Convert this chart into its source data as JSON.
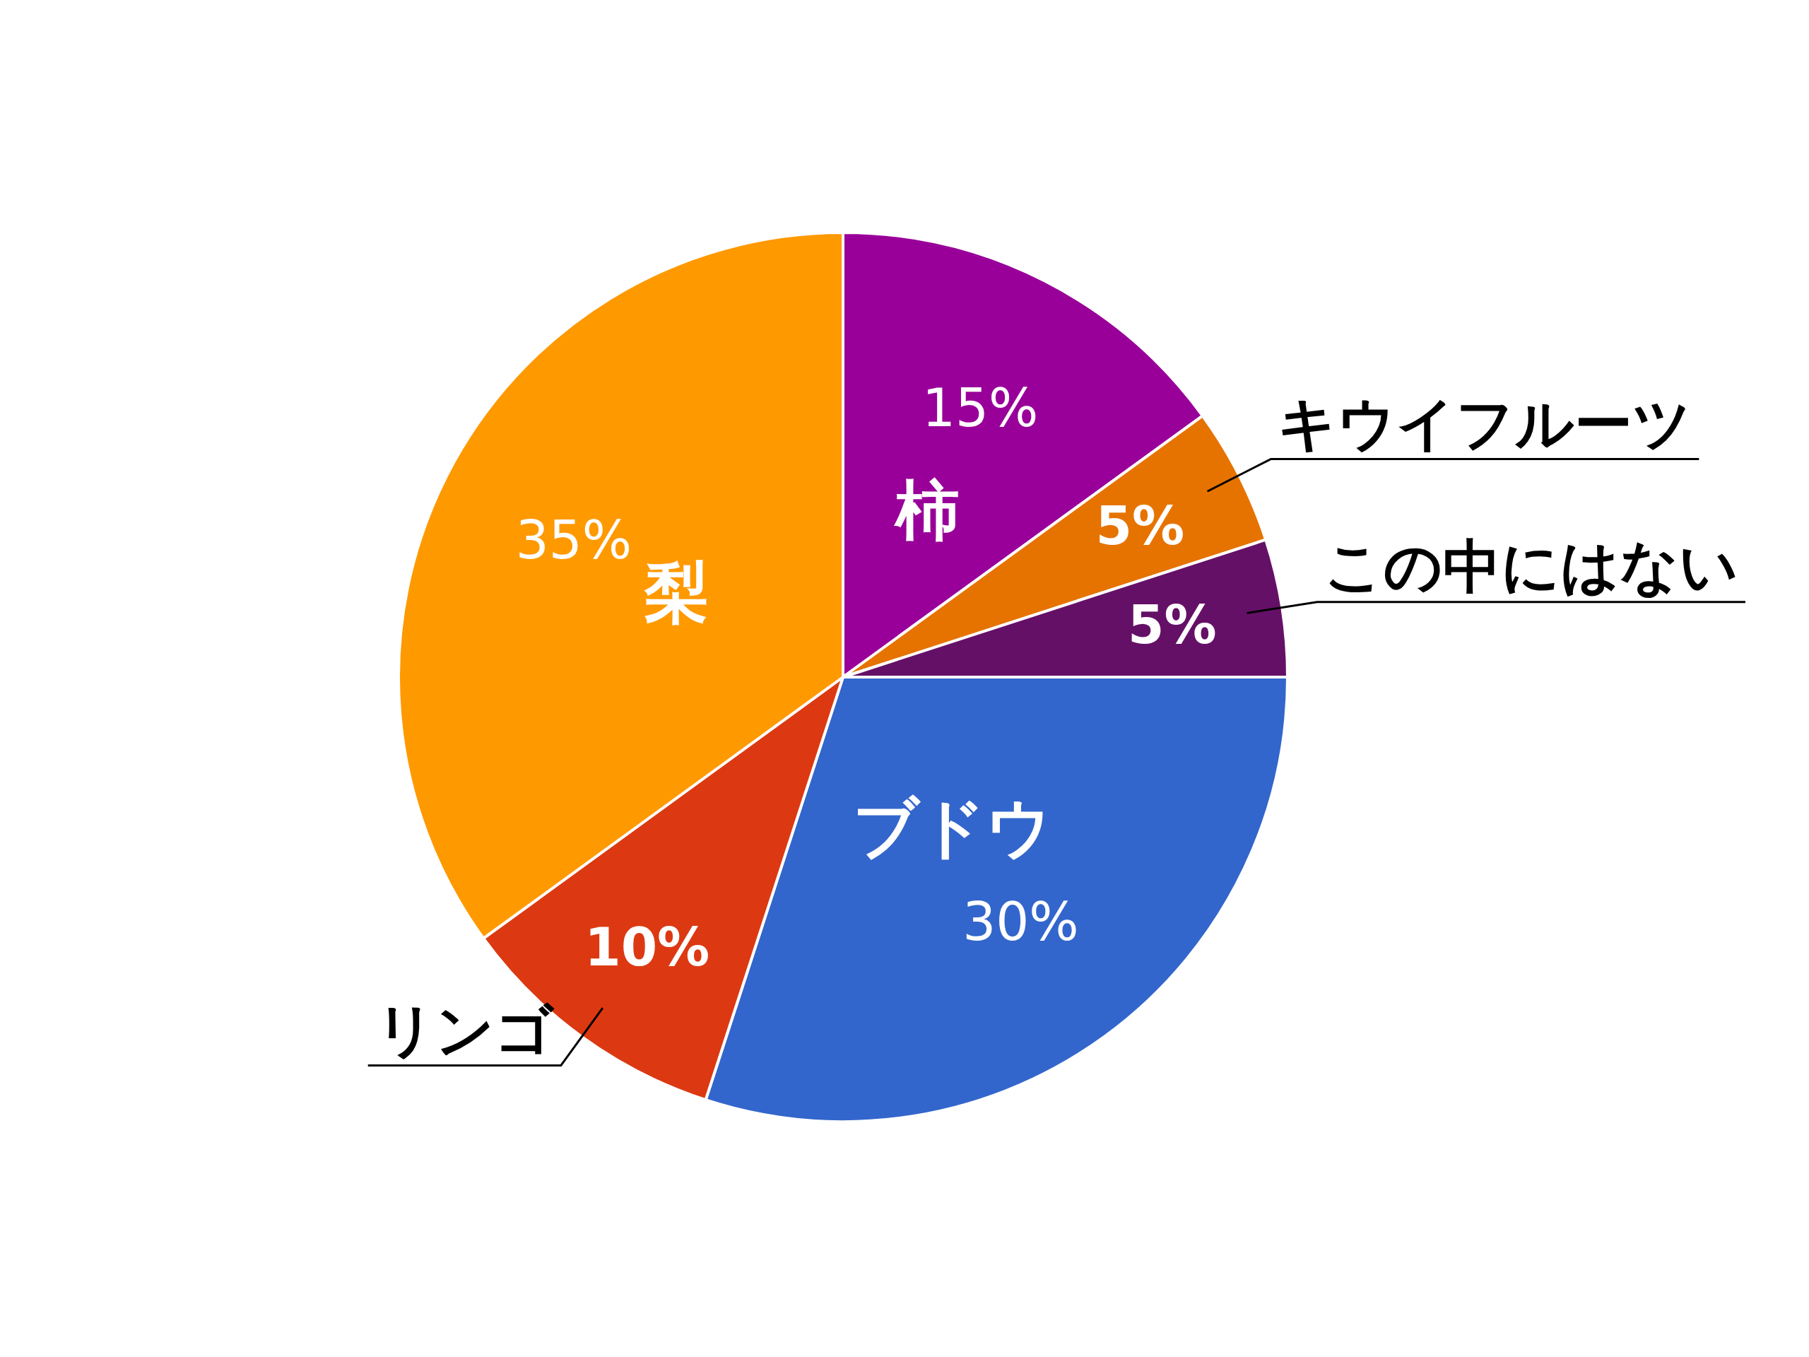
{
  "chart_data": {
    "type": "pie",
    "categories": [
      "柿",
      "キウイフルーツ",
      "この中にはない",
      "ブドウ",
      "リンゴ",
      "梨"
    ],
    "values": [
      15,
      5,
      5,
      30,
      10,
      35
    ],
    "colors": [
      "#990099",
      "#e67300",
      "#651067",
      "#3366cc",
      "#dc3912",
      "#ff9900"
    ],
    "value_labels": [
      "15%",
      "5%",
      "5%",
      "30%",
      "10%",
      "35%"
    ],
    "legend": false
  }
}
